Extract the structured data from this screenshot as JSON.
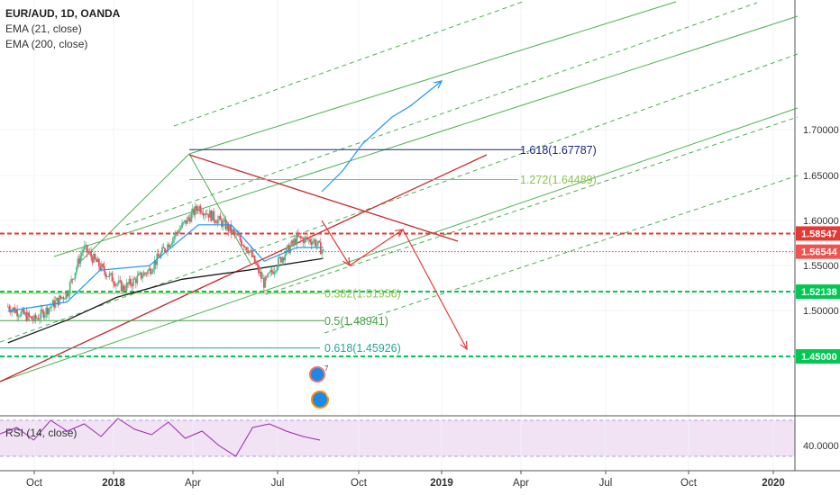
{
  "legend": {
    "symbol": "EUR/AUD, 1D, OANDA",
    "ema_fast": "EMA (21, close)",
    "ema_slow": "EMA (200, close)"
  },
  "rsi_label": "RSI (14, close)",
  "colors": {
    "price_up": "#53b987",
    "price_down": "#eb4d5c",
    "ema_fast": "#2196f3",
    "ema_slow": "#1b1b1b",
    "channel": "#4caf50",
    "trendline": "#c62828",
    "fib_ext_1618": "#1a237e",
    "fib_ext_1272": "#8bc34a",
    "fib_382": "#8bc34a",
    "fib_5": "#43a047",
    "fib_618": "#26a69a",
    "red_level": "#e53935",
    "green_level": "#00c853",
    "arrow_red": "#e53935",
    "arrow_blue": "#2196f3",
    "rsi_band": "#e1bee7",
    "rsi_line": "#9c27b0"
  },
  "chart_data": {
    "type": "candlestick",
    "symbol": "EUR/AUD",
    "timeframe": "1D",
    "source": "OANDA",
    "x_ticks": [
      "Oct",
      "2018",
      "Apr",
      "Jul",
      "Oct",
      "2019",
      "Apr",
      "Jul",
      "Oct",
      "2020"
    ],
    "y_ticks": [
      1.45,
      1.5,
      1.55,
      1.6,
      1.65,
      1.7
    ],
    "y_tick_labels": [
      "1.45000",
      "1.50000",
      "1.55000",
      "1.60000",
      "1.65000",
      "1.70000"
    ],
    "ylim": [
      1.4,
      1.735
    ],
    "price_path": [
      {
        "t": 2017.67,
        "p": 1.505
      },
      {
        "t": 2017.75,
        "p": 1.49
      },
      {
        "t": 2017.85,
        "p": 1.52
      },
      {
        "t": 2017.9,
        "p": 1.57
      },
      {
        "t": 2017.96,
        "p": 1.545
      },
      {
        "t": 2018.02,
        "p": 1.525
      },
      {
        "t": 2018.1,
        "p": 1.545
      },
      {
        "t": 2018.18,
        "p": 1.585
      },
      {
        "t": 2018.25,
        "p": 1.615
      },
      {
        "t": 2018.33,
        "p": 1.595
      },
      {
        "t": 2018.4,
        "p": 1.57
      },
      {
        "t": 2018.45,
        "p": 1.53
      },
      {
        "t": 2018.49,
        "p": 1.553
      },
      {
        "t": 2018.55,
        "p": 1.58
      },
      {
        "t": 2018.6,
        "p": 1.578
      },
      {
        "t": 2018.63,
        "p": 1.565
      }
    ],
    "ema_21": [
      {
        "t": 2017.67,
        "p": 1.5
      },
      {
        "t": 2017.85,
        "p": 1.51
      },
      {
        "t": 2017.95,
        "p": 1.545
      },
      {
        "t": 2018.1,
        "p": 1.55
      },
      {
        "t": 2018.25,
        "p": 1.595
      },
      {
        "t": 2018.35,
        "p": 1.595
      },
      {
        "t": 2018.45,
        "p": 1.555
      },
      {
        "t": 2018.55,
        "p": 1.57
      },
      {
        "t": 2018.63,
        "p": 1.57
      }
    ],
    "ema_200": [
      {
        "t": 2017.67,
        "p": 1.465
      },
      {
        "t": 2017.85,
        "p": 1.49
      },
      {
        "t": 2018.0,
        "p": 1.515
      },
      {
        "t": 2018.2,
        "p": 1.535
      },
      {
        "t": 2018.4,
        "p": 1.545
      },
      {
        "t": 2018.63,
        "p": 1.558
      }
    ],
    "horizontal_levels": [
      {
        "label": "1.618(1.67787)",
        "price": 1.67787,
        "style": "solid",
        "kind": "fib_ext_1618"
      },
      {
        "label": "1.272(1.64489)",
        "price": 1.64489,
        "style": "solid",
        "kind": "fib_ext_1272"
      },
      {
        "label": "0.382(1.51956)",
        "price": 1.51956,
        "style": "solid",
        "kind": "fib_382"
      },
      {
        "label": "0.5(1.48941)",
        "price": 1.48941,
        "style": "solid",
        "kind": "fib_5"
      },
      {
        "label": "0.618(1.45926)",
        "price": 1.45926,
        "style": "solid",
        "kind": "fib_618"
      },
      {
        "label": "",
        "price": 1.58547,
        "style": "dashed",
        "kind": "red_level"
      },
      {
        "label": "",
        "price": 1.56544,
        "style": "dotted",
        "kind": "red_level"
      },
      {
        "label": "",
        "price": 1.52138,
        "style": "dashed",
        "kind": "green_level"
      },
      {
        "label": "",
        "price": 1.45,
        "style": "dashed",
        "kind": "green_level"
      }
    ],
    "price_tags": [
      {
        "label": "1.58547",
        "price": 1.58547,
        "color": "#e53935"
      },
      {
        "label": "1.56544",
        "price": 1.56544,
        "color": "#ef5350"
      },
      {
        "label": "1.52138",
        "price": 1.52138,
        "color": "#00c853"
      },
      {
        "label": "1.45000",
        "price": 1.45,
        "color": "#00c853"
      }
    ],
    "rsi": {
      "name": "RSI (14, close)",
      "tick": "40.0000",
      "values": [
        55,
        62,
        48,
        70,
        58,
        66,
        52,
        72,
        60,
        54,
        68,
        50,
        58,
        42,
        30,
        62,
        66,
        58,
        52,
        48
      ]
    }
  }
}
